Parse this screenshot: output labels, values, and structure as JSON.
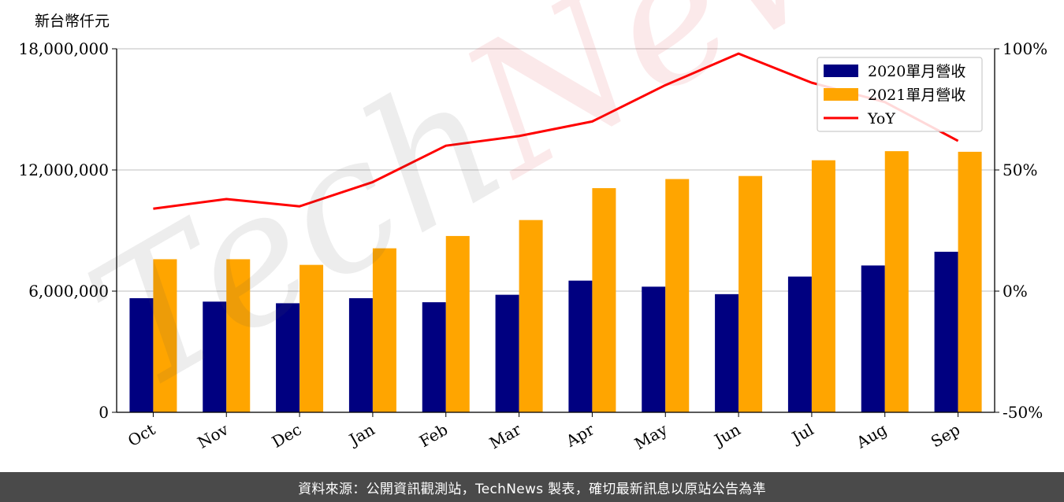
{
  "watermark": {
    "part1": "Tech",
    "part2": "News"
  },
  "footer": {
    "text": "資料來源：公開資訊觀測站，TechNews 製表，確切最新訊息以原站公告為準"
  },
  "colors": {
    "series2020": "#000080",
    "series2021": "#ffa500",
    "yoy": "#ff0000"
  },
  "chart_data": {
    "type": "bar",
    "ylabel": "新台幣仟元",
    "categories": [
      "Oct",
      "Nov",
      "Dec",
      "Jan",
      "Feb",
      "Mar",
      "Apr",
      "May",
      "Jun",
      "Jul",
      "Aug",
      "Sep"
    ],
    "ylim": [
      0,
      18000000
    ],
    "yticks": [
      0,
      6000000,
      12000000,
      18000000
    ],
    "ytick_labels": [
      "0",
      "6,000,000",
      "12,000,000",
      "18,000,000"
    ],
    "y2lim": [
      -50,
      100
    ],
    "y2ticks": [
      -50,
      0,
      50,
      100
    ],
    "y2tick_labels": [
      "-50%",
      "0%",
      "50%",
      "100%"
    ],
    "grid": "horizontal",
    "legend_position": "top-right",
    "series": [
      {
        "name": "2020單月營收",
        "type": "bar",
        "axis": "left",
        "values": [
          5650000,
          5480000,
          5400000,
          5650000,
          5450000,
          5820000,
          6520000,
          6220000,
          5850000,
          6720000,
          7270000,
          7950000
        ]
      },
      {
        "name": "2021單月營收",
        "type": "bar",
        "axis": "left",
        "values": [
          7580000,
          7580000,
          7300000,
          8120000,
          8730000,
          9520000,
          11100000,
          11550000,
          11700000,
          12480000,
          12930000,
          12900000
        ]
      },
      {
        "name": "YoY",
        "type": "line",
        "axis": "right",
        "values": [
          34,
          38,
          35,
          45,
          60,
          64,
          70,
          85,
          98,
          86,
          78,
          62
        ]
      }
    ]
  }
}
